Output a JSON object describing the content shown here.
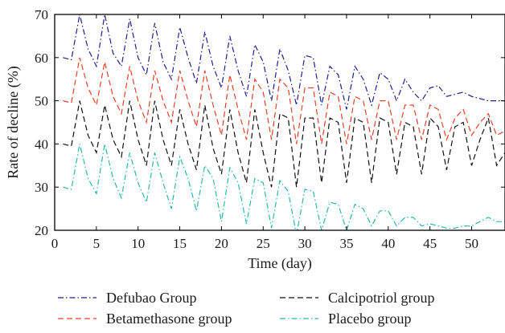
{
  "chart_data": {
    "type": "line",
    "title": "",
    "xlabel": "Time (day)",
    "ylabel": "Rate of decline (%)",
    "xlim": [
      0,
      54
    ],
    "ylim": [
      20,
      70
    ],
    "xticks": [
      0,
      5,
      10,
      15,
      20,
      25,
      30,
      35,
      40,
      45,
      50
    ],
    "yticks": [
      20,
      30,
      40,
      50,
      60,
      70
    ],
    "grid": false,
    "legend_position": "bottom",
    "series": [
      {
        "name": "Defubao Group",
        "color": "#1f1f8f",
        "dash": "dashdot",
        "x": [
          1,
          2,
          3,
          4,
          5,
          6,
          7,
          8,
          9,
          10,
          11,
          12,
          13,
          14,
          15,
          16,
          17,
          18,
          19,
          20,
          21,
          22,
          23,
          24,
          25,
          26,
          27,
          28,
          29,
          30,
          31,
          32,
          33,
          34,
          35,
          36,
          37,
          38,
          39,
          40,
          41,
          42,
          43,
          44,
          45,
          46,
          47,
          48,
          49,
          50,
          51,
          52,
          53,
          54
        ],
        "y": [
          60,
          59.5,
          70,
          62,
          58,
          70,
          61,
          58,
          69,
          60,
          56,
          68,
          59,
          55,
          67,
          60,
          54,
          66,
          58,
          53,
          65,
          57,
          51,
          63,
          59,
          50,
          62,
          57,
          49,
          60.5,
          60,
          49,
          58,
          56,
          48,
          58,
          55,
          49,
          56.5,
          55,
          50,
          55,
          52,
          50,
          53,
          53.5,
          51,
          51.5,
          52,
          51,
          50.5,
          50,
          50,
          50
        ]
      },
      {
        "name": "Betamethasone group",
        "color": "#e8402a",
        "dash": "dash",
        "x": [
          1,
          2,
          3,
          4,
          5,
          6,
          7,
          8,
          9,
          10,
          11,
          12,
          13,
          14,
          15,
          16,
          17,
          18,
          19,
          20,
          21,
          22,
          23,
          24,
          25,
          26,
          27,
          28,
          29,
          30,
          31,
          32,
          33,
          34,
          35,
          36,
          37,
          38,
          39,
          40,
          41,
          42,
          43,
          44,
          45,
          46,
          47,
          48,
          49,
          50,
          51,
          52,
          53,
          54
        ],
        "y": [
          50,
          49.5,
          60,
          53,
          49,
          59,
          51,
          47,
          58,
          50,
          45,
          57,
          50,
          45,
          57,
          50,
          44,
          57,
          49,
          42,
          56,
          48,
          41,
          55,
          52,
          41,
          55,
          53,
          40,
          53,
          53,
          40,
          52,
          51,
          40,
          51,
          50,
          41,
          50,
          50,
          41,
          49,
          49,
          41,
          49,
          48,
          41,
          46,
          48,
          42,
          45,
          47,
          42,
          43
        ]
      },
      {
        "name": "Calcipotriol group",
        "color": "#111111",
        "dash": "dash",
        "x": [
          1,
          2,
          3,
          4,
          5,
          6,
          7,
          8,
          9,
          10,
          11,
          12,
          13,
          14,
          15,
          16,
          17,
          18,
          19,
          20,
          21,
          22,
          23,
          24,
          25,
          26,
          27,
          28,
          29,
          30,
          31,
          32,
          33,
          34,
          35,
          36,
          37,
          38,
          39,
          40,
          41,
          42,
          43,
          44,
          45,
          46,
          47,
          48,
          49,
          50,
          51,
          52,
          53,
          54
        ],
        "y": [
          40,
          39.5,
          50,
          42,
          38,
          49,
          41,
          37,
          50,
          41,
          35,
          50,
          41,
          35,
          48,
          40,
          34,
          49,
          39,
          33,
          48,
          38,
          31,
          48,
          38,
          30,
          47,
          46,
          30,
          46,
          46,
          31,
          46,
          45,
          31,
          46,
          45,
          31,
          46,
          45,
          33,
          45,
          44,
          33,
          46,
          44,
          34,
          44,
          45,
          35,
          41,
          46,
          35,
          38
        ]
      },
      {
        "name": "Placebo group",
        "color": "#2bb7b0",
        "dash": "dashdot",
        "x": [
          1,
          2,
          3,
          4,
          5,
          6,
          7,
          8,
          9,
          10,
          11,
          12,
          13,
          14,
          15,
          16,
          17,
          18,
          19,
          20,
          21,
          22,
          23,
          24,
          25,
          26,
          27,
          28,
          29,
          30,
          31,
          32,
          33,
          34,
          35,
          36,
          37,
          38,
          39,
          40,
          41,
          42,
          43,
          44,
          45,
          46,
          47,
          48,
          49,
          50,
          51,
          52,
          53,
          54
        ],
        "y": [
          30,
          29.5,
          40,
          32,
          28.5,
          40,
          32,
          27.5,
          38,
          31,
          26.5,
          38,
          31,
          25,
          37,
          32,
          24.5,
          35,
          32,
          22,
          34.5,
          31,
          21.5,
          32,
          31,
          20.5,
          31.5,
          29,
          19,
          29.5,
          29,
          20,
          26.5,
          26,
          20,
          26,
          25,
          21,
          24.5,
          24.5,
          21,
          23,
          23,
          21,
          21.5,
          21,
          20.5,
          20.5,
          21,
          21,
          22,
          23,
          22,
          22
        ]
      }
    ]
  }
}
